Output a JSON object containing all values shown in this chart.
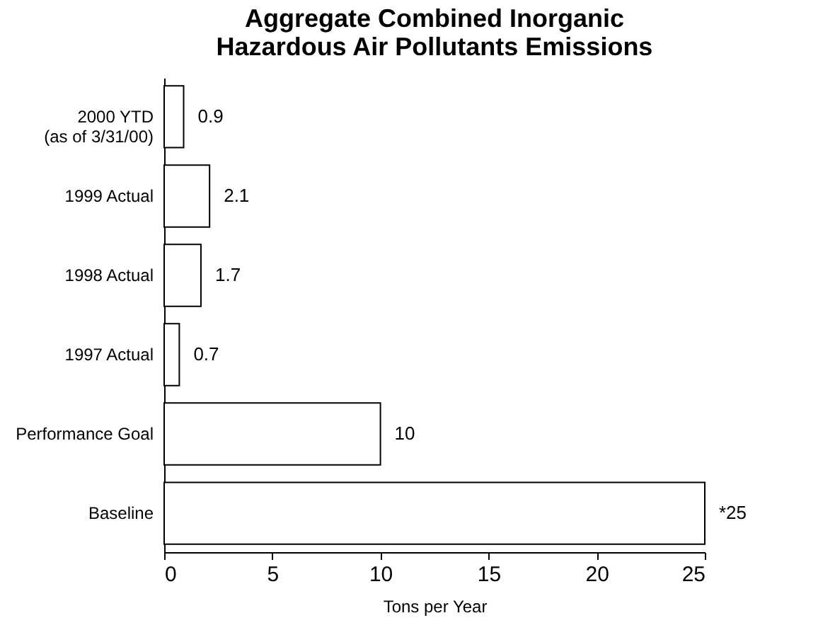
{
  "chart_data": {
    "type": "bar",
    "orientation": "horizontal",
    "title": "Aggregate Combined Inorganic\nHazardous Air Pollutants Emissions",
    "xlabel": "Tons per Year",
    "categories": [
      "2000 YTD\n(as of 3/31/00)",
      "1999 Actual",
      "1998 Actual",
      "1997 Actual",
      "Performance Goal",
      "Baseline"
    ],
    "values": [
      0.9,
      2.1,
      1.7,
      0.7,
      10,
      25
    ],
    "value_labels": [
      "0.9",
      "2.1",
      "1.7",
      "0.7",
      "10",
      "*25"
    ],
    "color": "#ffffff",
    "xlim": [
      0,
      25
    ],
    "xticks": [
      0,
      5,
      10,
      15,
      20,
      25
    ]
  }
}
